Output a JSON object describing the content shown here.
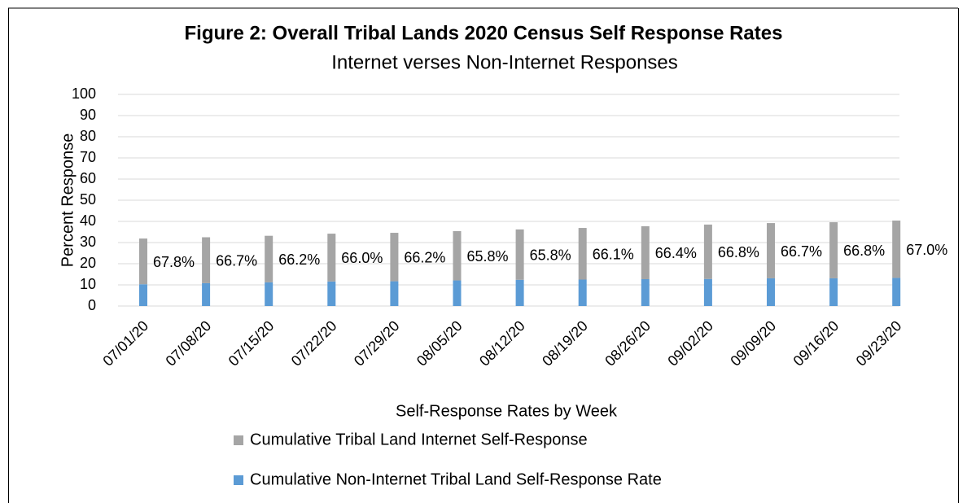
{
  "chart_data": {
    "type": "stacked_bar",
    "title": "Figure 2: Overall Tribal Lands 2020 Census Self Response Rates",
    "subtitle": "Internet verses Non-Internet Responses",
    "x_label": "Self-Response Rates by Week",
    "y_label": "Percent Response",
    "categories": [
      "07/01/20",
      "07/08/20",
      "07/15/20",
      "07/22/20",
      "07/29/20",
      "08/05/20",
      "08/12/20",
      "08/19/20",
      "08/26/20",
      "09/02/20",
      "09/09/20",
      "09/16/20",
      "09/23/20"
    ],
    "series": [
      {
        "name": "Cumulative Non-Internet Tribal Land Self-Response Rate",
        "color": "#5b9bd5",
        "values": [
          10.3,
          10.8,
          11.2,
          11.6,
          11.7,
          12.1,
          12.4,
          12.5,
          12.7,
          12.8,
          13.1,
          13.1,
          13.3
        ]
      },
      {
        "name": "Cumulative Tribal Land Internet Self-Response",
        "color": "#a5a5a5",
        "values": [
          21.6,
          21.7,
          22.0,
          22.6,
          22.9,
          23.3,
          23.8,
          24.4,
          25.0,
          25.7,
          26.1,
          26.5,
          27.1
        ],
        "share_labels": [
          "67.8%",
          "66.7%",
          "66.2%",
          "66.0%",
          "66.2%",
          "65.8%",
          "65.8%",
          "66.1%",
          "66.4%",
          "66.8%",
          "66.7%",
          "66.8%",
          "67.0%"
        ]
      }
    ],
    "legend_order": [
      1,
      0
    ],
    "ylim": [
      0,
      100
    ],
    "yticks": [
      0,
      10,
      20,
      30,
      40,
      50,
      60,
      70,
      80,
      90,
      100
    ],
    "grid": true
  }
}
